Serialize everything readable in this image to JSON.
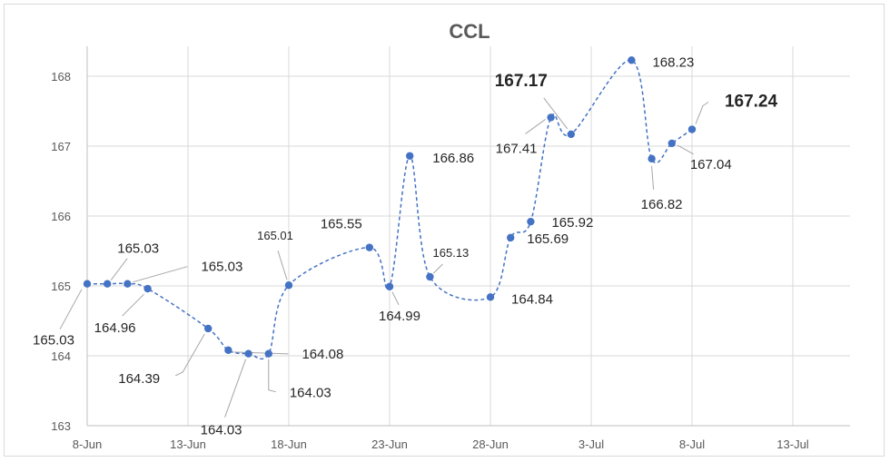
{
  "chart_data": {
    "type": "line",
    "title": "CCL",
    "xlabel": "",
    "ylabel": "",
    "x_ticks": [
      "8-Jun",
      "13-Jun",
      "18-Jun",
      "23-Jun",
      "28-Jun",
      "3-Jul",
      "8-Jul",
      "13-Jul"
    ],
    "y_ticks": [
      "163",
      "164",
      "165",
      "166",
      "167",
      "168"
    ],
    "ylim": [
      163,
      168.5
    ],
    "xlim": [
      "2020-06-08",
      "2020-07-13"
    ],
    "grid": true,
    "legend": "none",
    "line_style": "dashed, smoothed",
    "series_color": "#4472c4",
    "series": [
      {
        "points": [
          {
            "x": "2020-06-08",
            "y": 165.03,
            "label": "165.03"
          },
          {
            "x": "2020-06-09",
            "y": 165.03,
            "label": "165.03"
          },
          {
            "x": "2020-06-10",
            "y": 165.03,
            "label": "165.03"
          },
          {
            "x": "2020-06-11",
            "y": 164.96,
            "label": "164.96"
          },
          {
            "x": "2020-06-14",
            "y": 164.39,
            "label": "164.39"
          },
          {
            "x": "2020-06-15",
            "y": 164.08,
            "label": "164.08"
          },
          {
            "x": "2020-06-16",
            "y": 164.03,
            "label": "164.03"
          },
          {
            "x": "2020-06-17",
            "y": 164.03,
            "label": "164.03"
          },
          {
            "x": "2020-06-18",
            "y": 165.01,
            "label": "165.01"
          },
          {
            "x": "2020-06-22",
            "y": 165.55,
            "label": "165.55"
          },
          {
            "x": "2020-06-23",
            "y": 164.99,
            "label": "164.99"
          },
          {
            "x": "2020-06-24",
            "y": 166.86,
            "label": "166.86"
          },
          {
            "x": "2020-06-25",
            "y": 165.13,
            "label": "165.13"
          },
          {
            "x": "2020-06-28",
            "y": 164.84,
            "label": "164.84"
          },
          {
            "x": "2020-06-29",
            "y": 165.69,
            "label": "165.69"
          },
          {
            "x": "2020-06-30",
            "y": 165.92,
            "label": "165.92"
          },
          {
            "x": "2020-07-01",
            "y": 167.41,
            "label": "167.41"
          },
          {
            "x": "2020-07-02",
            "y": 167.17,
            "label": "167.17"
          },
          {
            "x": "2020-07-05",
            "y": 168.23,
            "label": "168.23"
          },
          {
            "x": "2020-07-06",
            "y": 166.82,
            "label": "166.82"
          },
          {
            "x": "2020-07-07",
            "y": 167.04,
            "label": "167.04"
          },
          {
            "x": "2020-07-08",
            "y": 167.24,
            "label": "167.24"
          }
        ]
      }
    ]
  }
}
